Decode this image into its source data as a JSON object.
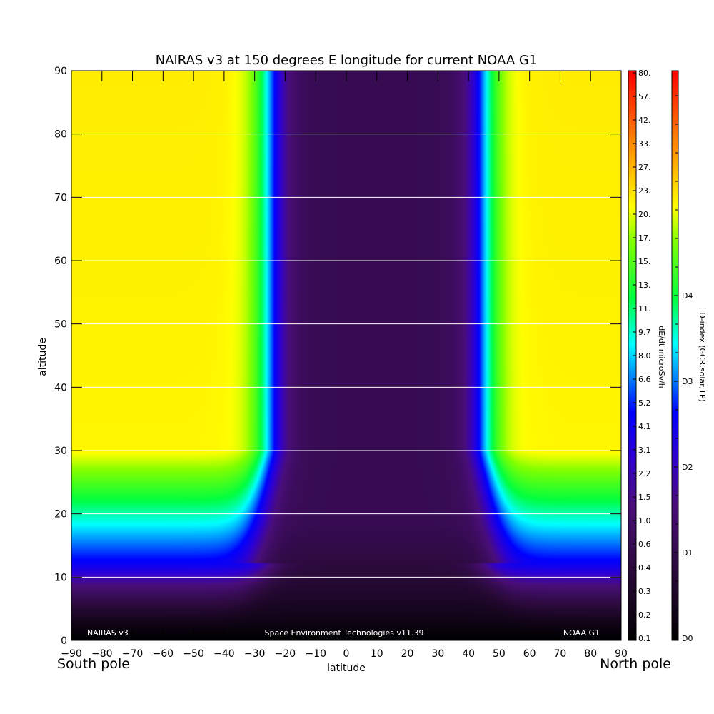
{
  "chart_data": {
    "type": "heatmap",
    "title": "NAIRAS v3 at 150 degrees E longitude for current NOAA G1",
    "xlabel": "latitude",
    "ylabel": "altitude",
    "xlim": [
      -90,
      90
    ],
    "ylim": [
      0,
      90
    ],
    "x_ticks": [
      "-90",
      "-80",
      "-70",
      "-60",
      "-50",
      "-40",
      "-30",
      "-20",
      "-10",
      "0",
      "10",
      "20",
      "30",
      "40",
      "50",
      "60",
      "70",
      "80",
      "90"
    ],
    "y_ticks": [
      "0",
      "10",
      "20",
      "30",
      "40",
      "50",
      "60",
      "70",
      "80",
      "90"
    ],
    "x_end_labels": {
      "left": "South pole",
      "right": "North pole"
    },
    "grid": "horizontal lines at every 10 altitude units from 10 to 80",
    "footer": {
      "left": "NAIRAS v3",
      "center": "Space Environment Technologies v11.39",
      "right": "NOAA G1"
    },
    "dose_colorbar": {
      "label": "dE/dt microSv/h",
      "ticks": [
        "0.1",
        "0.2",
        "0.3",
        "0.4",
        "0.6",
        "1.0",
        "1.5",
        "2.2",
        "3.1",
        "4.1",
        "5.2",
        "6.6",
        "8.0",
        "9.7",
        "11.",
        "13.",
        "15.",
        "17.",
        "20.",
        "23.",
        "27.",
        "33.",
        "42.",
        "57.",
        "80."
      ]
    },
    "dindex_colorbar": {
      "label": "D-index (GCR,solar,TP)",
      "ticks": [
        "D0",
        "D1",
        "D2",
        "D3",
        "D4"
      ]
    },
    "approx_dose_rates": {
      "equator_surface": 0.1,
      "equator_cruise_alt": 0.3,
      "polar_cruise_alt": 17,
      "polar_high_alt": 18,
      "polar_10km": 1.0
    }
  }
}
